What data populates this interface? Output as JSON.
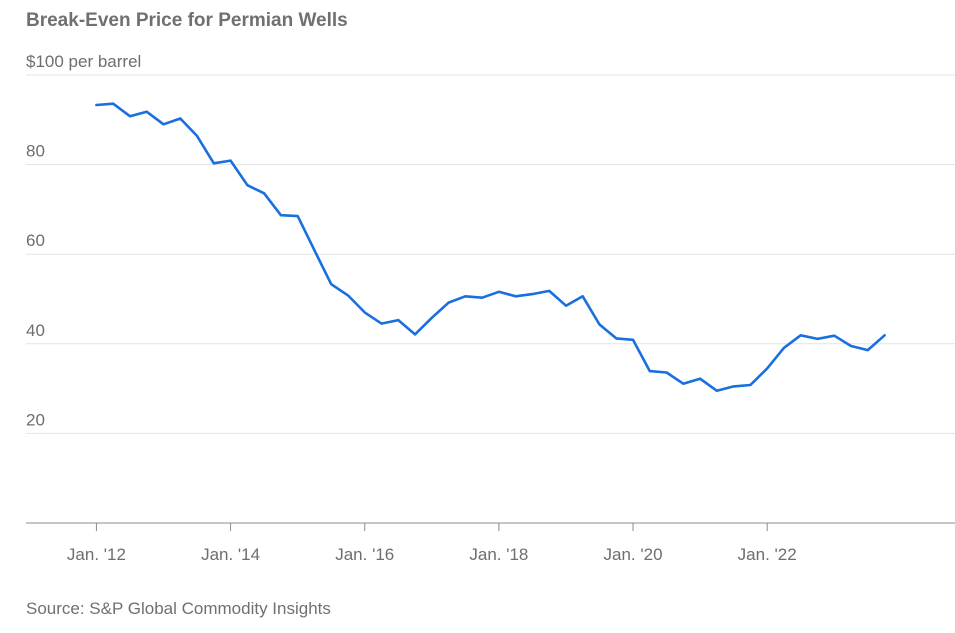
{
  "chart_data": {
    "type": "line",
    "title": "Break-Even Price for Permian Wells",
    "top_tick_label": "$100 per barrel",
    "y_ticks": [
      {
        "value": 100,
        "label": "$100 per barrel"
      },
      {
        "value": 80,
        "label": "80"
      },
      {
        "value": 60,
        "label": "60"
      },
      {
        "value": 40,
        "label": "40"
      },
      {
        "value": 20,
        "label": "20"
      }
    ],
    "ylim": [
      0,
      100
    ],
    "x_ticks": [
      {
        "value": 2012,
        "label": "Jan. '12"
      },
      {
        "value": 2014,
        "label": "Jan. '14"
      },
      {
        "value": 2016,
        "label": "Jan. '16"
      },
      {
        "value": 2018,
        "label": "Jan. '18"
      },
      {
        "value": 2020,
        "label": "Jan. '20"
      },
      {
        "value": 2022,
        "label": "Jan. '22"
      }
    ],
    "xlim": [
      2010.95,
      2024.8
    ],
    "grid": true,
    "source": "Source: S&P Global Commodity Insights",
    "series": [
      {
        "color": "#1a6fdf",
        "points": [
          [
            2012.0,
            93.3
          ],
          [
            2012.25,
            93.6
          ],
          [
            2012.5,
            90.8
          ],
          [
            2012.75,
            91.8
          ],
          [
            2013.0,
            89.0
          ],
          [
            2013.25,
            90.3
          ],
          [
            2013.5,
            86.4
          ],
          [
            2013.75,
            80.3
          ],
          [
            2014.0,
            80.9
          ],
          [
            2014.25,
            75.4
          ],
          [
            2014.5,
            73.6
          ],
          [
            2014.75,
            68.7
          ],
          [
            2015.0,
            68.5
          ],
          [
            2015.25,
            60.9
          ],
          [
            2015.5,
            53.3
          ],
          [
            2015.75,
            50.8
          ],
          [
            2016.0,
            47.0
          ],
          [
            2016.25,
            44.5
          ],
          [
            2016.5,
            45.3
          ],
          [
            2016.75,
            42.1
          ],
          [
            2017.0,
            45.8
          ],
          [
            2017.25,
            49.2
          ],
          [
            2017.5,
            50.6
          ],
          [
            2017.75,
            50.3
          ],
          [
            2018.0,
            51.6
          ],
          [
            2018.25,
            50.6
          ],
          [
            2018.5,
            51.1
          ],
          [
            2018.75,
            51.8
          ],
          [
            2019.0,
            48.5
          ],
          [
            2019.25,
            50.6
          ],
          [
            2019.5,
            44.3
          ],
          [
            2019.75,
            41.2
          ],
          [
            2020.0,
            40.9
          ],
          [
            2020.25,
            33.9
          ],
          [
            2020.5,
            33.6
          ],
          [
            2020.75,
            31.1
          ],
          [
            2021.0,
            32.2
          ],
          [
            2021.25,
            29.5
          ],
          [
            2021.5,
            30.5
          ],
          [
            2021.75,
            30.8
          ],
          [
            2022.0,
            34.5
          ],
          [
            2022.25,
            39.1
          ],
          [
            2022.5,
            41.9
          ],
          [
            2022.75,
            41.1
          ],
          [
            2023.0,
            41.8
          ],
          [
            2023.25,
            39.5
          ],
          [
            2023.5,
            38.6
          ],
          [
            2023.75,
            41.9
          ]
        ]
      }
    ]
  }
}
